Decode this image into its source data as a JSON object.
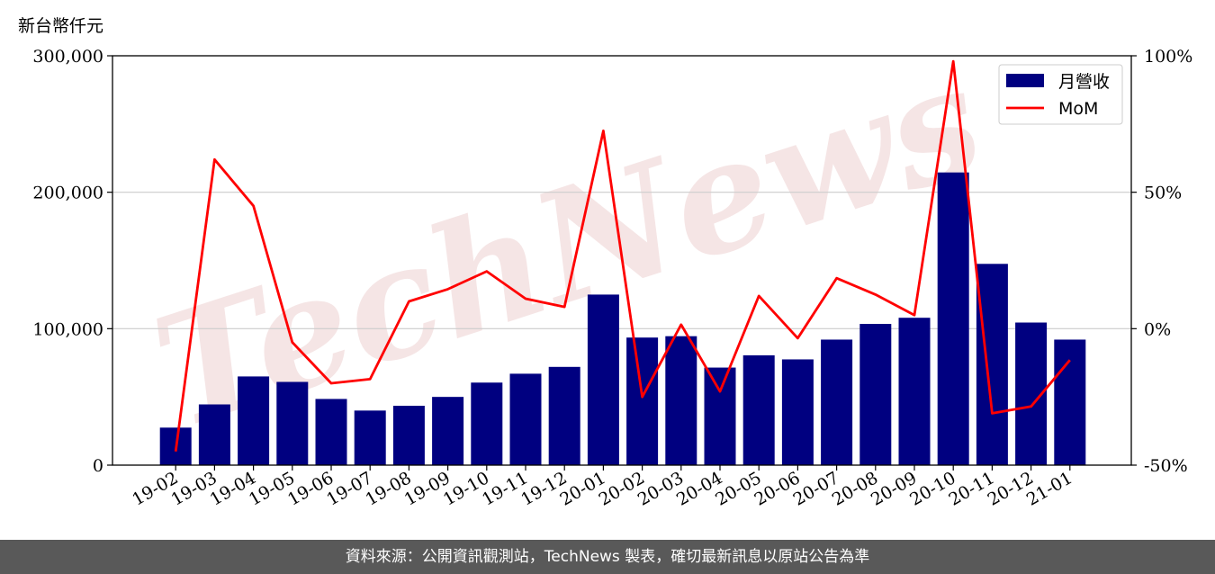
{
  "unit_label": "新台幣仟元",
  "footer_text": "資料來源：公開資訊觀測站，TechNews 製表，確切最新訊息以原站公告為準",
  "watermark_text": "TechNews",
  "colors": {
    "bar": "#000080",
    "line": "#ff0000",
    "grid": "#cccccc",
    "footer_bg": "#595959"
  },
  "chart_data": {
    "type": "bar",
    "categories": [
      "19-02",
      "19-03",
      "19-04",
      "19-05",
      "19-06",
      "19-07",
      "19-08",
      "19-09",
      "19-10",
      "19-11",
      "19-12",
      "20-01",
      "20-02",
      "20-03",
      "20-04",
      "20-05",
      "20-06",
      "20-07",
      "20-08",
      "20-09",
      "20-10",
      "20-11",
      "20-12",
      "21-01"
    ],
    "series": [
      {
        "name": "月營收",
        "type": "bar",
        "axis": "left",
        "values": [
          27500,
          44500,
          65000,
          61000,
          48500,
          40000,
          43500,
          50000,
          60500,
          67000,
          72000,
          125000,
          93500,
          94500,
          71500,
          80500,
          77500,
          92000,
          103500,
          108000,
          214500,
          147500,
          104500,
          92000
        ]
      },
      {
        "name": "MoM",
        "type": "line",
        "axis": "right",
        "values": [
          -45,
          62,
          45,
          -5,
          -20,
          -18.5,
          10,
          14.5,
          21,
          11,
          8,
          72.5,
          -25,
          1.5,
          -23,
          12,
          -3.5,
          18.5,
          12.5,
          5,
          98,
          -31,
          -28.5,
          -11.5
        ]
      }
    ],
    "left_axis": {
      "ylim": [
        0,
        300000
      ],
      "ticks": [
        0,
        100000,
        200000,
        300000
      ],
      "tick_labels": [
        "0",
        "100,000",
        "200,000",
        "300,000"
      ]
    },
    "right_axis": {
      "ylim": [
        -50,
        100
      ],
      "ticks": [
        -50,
        0,
        50,
        100
      ],
      "tick_labels": [
        "-50%",
        "0%",
        "50%",
        "100%"
      ]
    },
    "grid": true,
    "legend": {
      "position": "top-right",
      "entries": [
        "月營收",
        "MoM"
      ]
    }
  }
}
